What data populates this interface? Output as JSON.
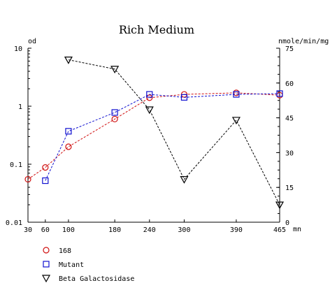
{
  "chart_data": {
    "type": "line",
    "title": "Rich Medium",
    "x": [
      30,
      60,
      100,
      180,
      240,
      300,
      390,
      465
    ],
    "x_ticks": [
      "30",
      "60",
      "100",
      "180",
      "240",
      "300",
      "390",
      "465"
    ],
    "x_unit": "mn",
    "xlim": [
      30,
      465
    ],
    "y_left": {
      "label": "od",
      "scale": "log",
      "lim": [
        0.01,
        10
      ],
      "ticks": [
        "0.01",
        "0.1",
        "1",
        "10"
      ]
    },
    "y_right": {
      "label": "nmole/min/mg",
      "scale": "linear",
      "lim": [
        0,
        75
      ],
      "ticks": [
        "0",
        "15",
        "30",
        "45",
        "60",
        "75"
      ]
    },
    "series": [
      {
        "name": "168",
        "axis": "left",
        "color": "#d01010",
        "marker": "circle",
        "x": [
          30,
          60,
          100,
          180,
          240,
          300,
          390,
          465
        ],
        "y": [
          0.055,
          0.088,
          0.2,
          0.6,
          1.4,
          1.6,
          1.7,
          1.55
        ]
      },
      {
        "name": "Mutant",
        "axis": "left",
        "color": "#1010d0",
        "marker": "square",
        "x": [
          60,
          100,
          180,
          240,
          300,
          390,
          465
        ],
        "y": [
          0.052,
          0.37,
          0.78,
          1.6,
          1.42,
          1.6,
          1.65
        ]
      },
      {
        "name": "Beta Galactosidase",
        "axis": "right",
        "color": "#000000",
        "marker": "triangle-down",
        "x": [
          100,
          180,
          240,
          300,
          390,
          465
        ],
        "y": [
          70,
          66,
          48.5,
          18.5,
          44,
          7.5
        ]
      }
    ],
    "legend": {
      "placement": "bottom-left",
      "entries": [
        "168",
        "Mutant",
        "Beta Galactosidase"
      ]
    },
    "grid": false
  }
}
